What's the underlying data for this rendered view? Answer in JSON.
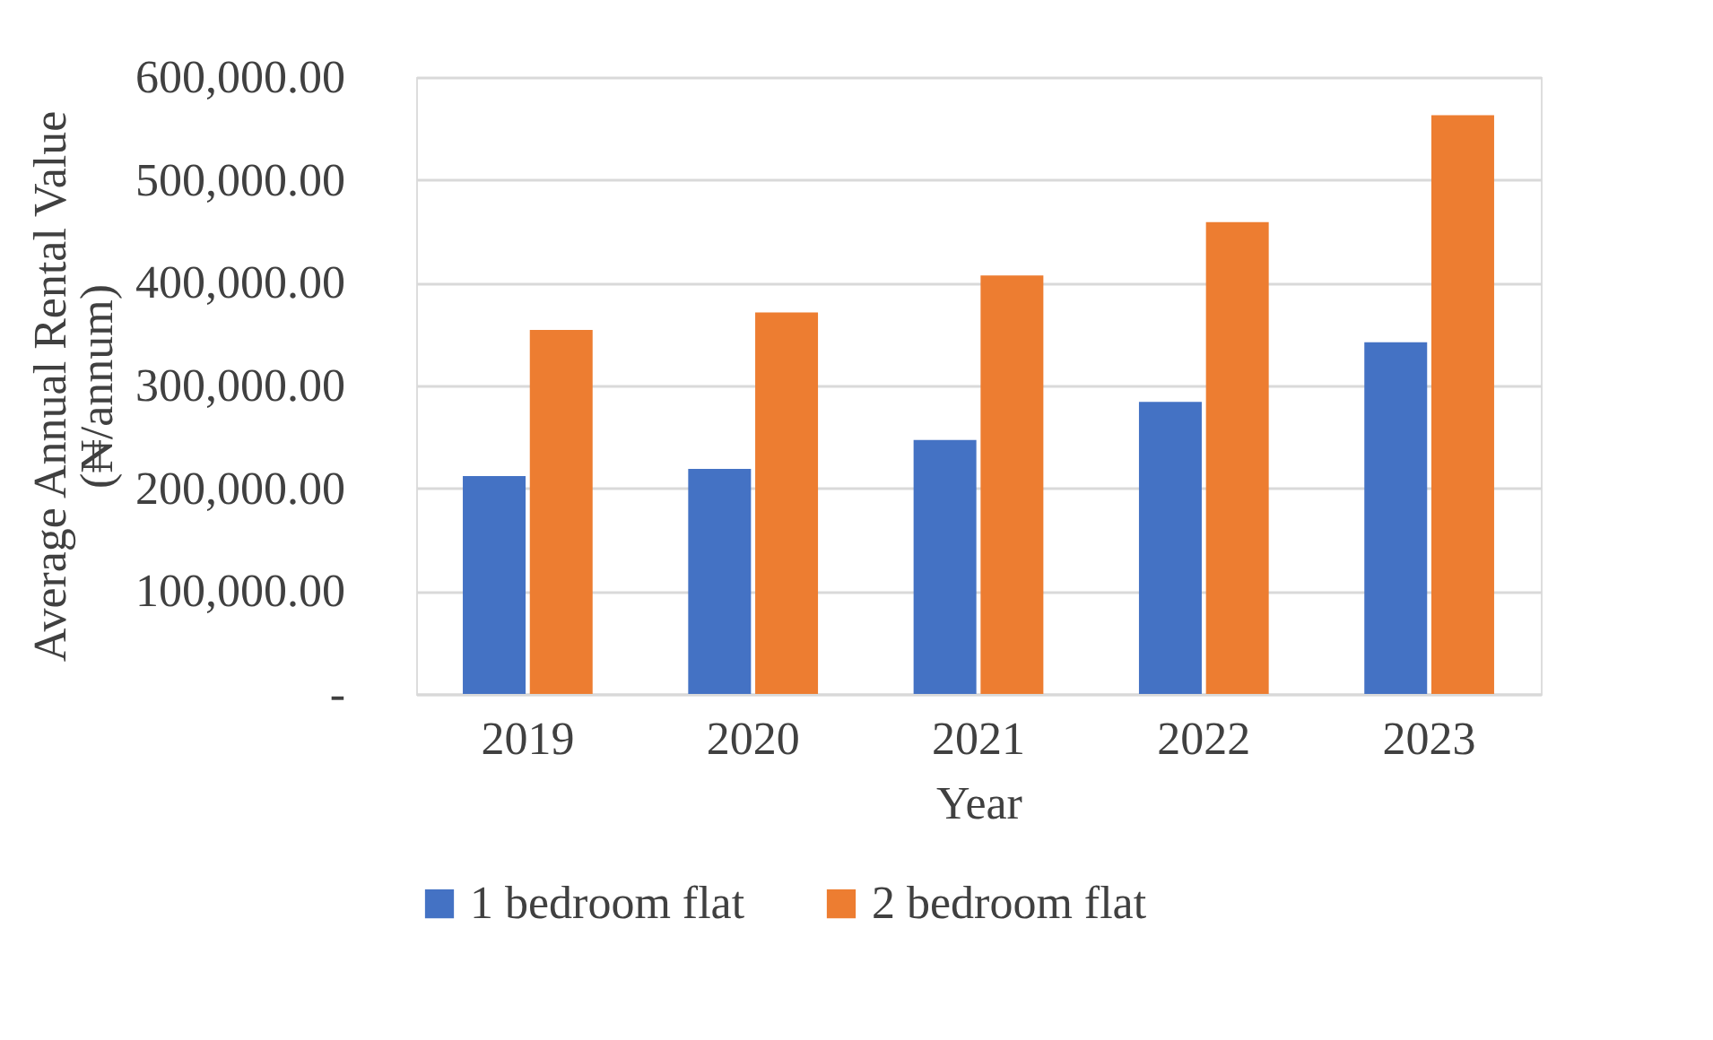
{
  "chart_data": {
    "type": "bar",
    "xlabel": "Year",
    "ylabel": "Average Annual Rental Value (₦/annum)",
    "categories": [
      "2019",
      "2020",
      "2021",
      "2022",
      "2023"
    ],
    "series": [
      {
        "name": "1 bedroom flat",
        "color": "#4472c4",
        "values": [
          212000,
          219000,
          247000,
          284000,
          342000
        ]
      },
      {
        "name": "2 bedroom flat",
        "color": "#ed7d31",
        "values": [
          354000,
          371000,
          407000,
          459000,
          563000
        ]
      }
    ],
    "ylim": [
      0,
      600000
    ],
    "yticks": [
      {
        "value": 0,
        "label": "-"
      },
      {
        "value": 100000,
        "label": "100,000.00"
      },
      {
        "value": 200000,
        "label": "200,000.00"
      },
      {
        "value": 300000,
        "label": "300,000.00"
      },
      {
        "value": 400000,
        "label": "400,000.00"
      },
      {
        "value": 500000,
        "label": "500,000.00"
      },
      {
        "value": 600000,
        "label": "600,000.00"
      }
    ],
    "grid": "y",
    "legend": "bottom"
  }
}
